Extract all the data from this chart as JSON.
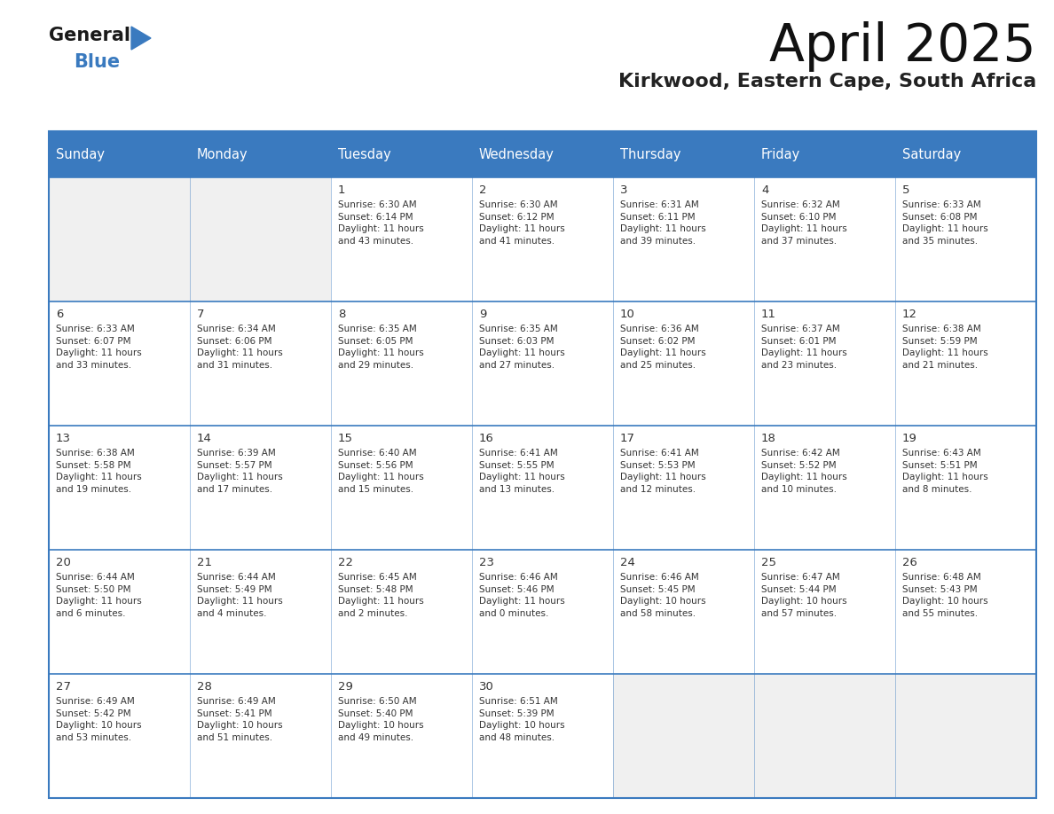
{
  "title": "April 2025",
  "subtitle": "Kirkwood, Eastern Cape, South Africa",
  "header_bg": "#3a7abf",
  "header_text_color": "#ffffff",
  "cell_bg_white": "#ffffff",
  "cell_bg_gray": "#f0f0f0",
  "border_color": "#3a7abf",
  "text_color": "#333333",
  "days_of_week": [
    "Sunday",
    "Monday",
    "Tuesday",
    "Wednesday",
    "Thursday",
    "Friday",
    "Saturday"
  ],
  "calendar": [
    [
      {
        "day": "",
        "info": ""
      },
      {
        "day": "",
        "info": ""
      },
      {
        "day": "1",
        "info": "Sunrise: 6:30 AM\nSunset: 6:14 PM\nDaylight: 11 hours\nand 43 minutes."
      },
      {
        "day": "2",
        "info": "Sunrise: 6:30 AM\nSunset: 6:12 PM\nDaylight: 11 hours\nand 41 minutes."
      },
      {
        "day": "3",
        "info": "Sunrise: 6:31 AM\nSunset: 6:11 PM\nDaylight: 11 hours\nand 39 minutes."
      },
      {
        "day": "4",
        "info": "Sunrise: 6:32 AM\nSunset: 6:10 PM\nDaylight: 11 hours\nand 37 minutes."
      },
      {
        "day": "5",
        "info": "Sunrise: 6:33 AM\nSunset: 6:08 PM\nDaylight: 11 hours\nand 35 minutes."
      }
    ],
    [
      {
        "day": "6",
        "info": "Sunrise: 6:33 AM\nSunset: 6:07 PM\nDaylight: 11 hours\nand 33 minutes."
      },
      {
        "day": "7",
        "info": "Sunrise: 6:34 AM\nSunset: 6:06 PM\nDaylight: 11 hours\nand 31 minutes."
      },
      {
        "day": "8",
        "info": "Sunrise: 6:35 AM\nSunset: 6:05 PM\nDaylight: 11 hours\nand 29 minutes."
      },
      {
        "day": "9",
        "info": "Sunrise: 6:35 AM\nSunset: 6:03 PM\nDaylight: 11 hours\nand 27 minutes."
      },
      {
        "day": "10",
        "info": "Sunrise: 6:36 AM\nSunset: 6:02 PM\nDaylight: 11 hours\nand 25 minutes."
      },
      {
        "day": "11",
        "info": "Sunrise: 6:37 AM\nSunset: 6:01 PM\nDaylight: 11 hours\nand 23 minutes."
      },
      {
        "day": "12",
        "info": "Sunrise: 6:38 AM\nSunset: 5:59 PM\nDaylight: 11 hours\nand 21 minutes."
      }
    ],
    [
      {
        "day": "13",
        "info": "Sunrise: 6:38 AM\nSunset: 5:58 PM\nDaylight: 11 hours\nand 19 minutes."
      },
      {
        "day": "14",
        "info": "Sunrise: 6:39 AM\nSunset: 5:57 PM\nDaylight: 11 hours\nand 17 minutes."
      },
      {
        "day": "15",
        "info": "Sunrise: 6:40 AM\nSunset: 5:56 PM\nDaylight: 11 hours\nand 15 minutes."
      },
      {
        "day": "16",
        "info": "Sunrise: 6:41 AM\nSunset: 5:55 PM\nDaylight: 11 hours\nand 13 minutes."
      },
      {
        "day": "17",
        "info": "Sunrise: 6:41 AM\nSunset: 5:53 PM\nDaylight: 11 hours\nand 12 minutes."
      },
      {
        "day": "18",
        "info": "Sunrise: 6:42 AM\nSunset: 5:52 PM\nDaylight: 11 hours\nand 10 minutes."
      },
      {
        "day": "19",
        "info": "Sunrise: 6:43 AM\nSunset: 5:51 PM\nDaylight: 11 hours\nand 8 minutes."
      }
    ],
    [
      {
        "day": "20",
        "info": "Sunrise: 6:44 AM\nSunset: 5:50 PM\nDaylight: 11 hours\nand 6 minutes."
      },
      {
        "day": "21",
        "info": "Sunrise: 6:44 AM\nSunset: 5:49 PM\nDaylight: 11 hours\nand 4 minutes."
      },
      {
        "day": "22",
        "info": "Sunrise: 6:45 AM\nSunset: 5:48 PM\nDaylight: 11 hours\nand 2 minutes."
      },
      {
        "day": "23",
        "info": "Sunrise: 6:46 AM\nSunset: 5:46 PM\nDaylight: 11 hours\nand 0 minutes."
      },
      {
        "day": "24",
        "info": "Sunrise: 6:46 AM\nSunset: 5:45 PM\nDaylight: 10 hours\nand 58 minutes."
      },
      {
        "day": "25",
        "info": "Sunrise: 6:47 AM\nSunset: 5:44 PM\nDaylight: 10 hours\nand 57 minutes."
      },
      {
        "day": "26",
        "info": "Sunrise: 6:48 AM\nSunset: 5:43 PM\nDaylight: 10 hours\nand 55 minutes."
      }
    ],
    [
      {
        "day": "27",
        "info": "Sunrise: 6:49 AM\nSunset: 5:42 PM\nDaylight: 10 hours\nand 53 minutes."
      },
      {
        "day": "28",
        "info": "Sunrise: 6:49 AM\nSunset: 5:41 PM\nDaylight: 10 hours\nand 51 minutes."
      },
      {
        "day": "29",
        "info": "Sunrise: 6:50 AM\nSunset: 5:40 PM\nDaylight: 10 hours\nand 49 minutes."
      },
      {
        "day": "30",
        "info": "Sunrise: 6:51 AM\nSunset: 5:39 PM\nDaylight: 10 hours\nand 48 minutes."
      },
      {
        "day": "",
        "info": ""
      },
      {
        "day": "",
        "info": ""
      },
      {
        "day": "",
        "info": ""
      }
    ]
  ],
  "logo_text_general": "General",
  "logo_text_blue": "Blue",
  "logo_color_general": "#1a1a1a",
  "logo_color_blue": "#3a7abf",
  "logo_triangle_color": "#3a7abf",
  "fig_width": 11.88,
  "fig_height": 9.18,
  "dpi": 100
}
